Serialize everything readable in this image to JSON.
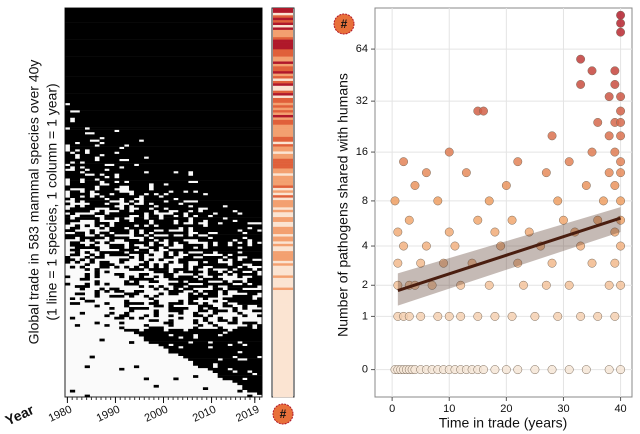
{
  "chart_data": [
    {
      "type": "heatmap",
      "y_label": "Global trade in 583 mammal species over 40y",
      "y_sublabel": "(1 line = 1 species, 1 column = 1 year)",
      "x_label": "Year",
      "xlim": [
        1979.5,
        2020.5
      ],
      "xticks": [
        1980,
        1990,
        2000,
        2010,
        2019
      ],
      "badge": "#"
    },
    {
      "type": "scatter",
      "x_label": "Time in trade (years)",
      "y_label": "Number of pathogens shared with humans",
      "y_scale": "log1p",
      "xlim": [
        -3,
        42
      ],
      "ylim": [
        -0.3,
        110
      ],
      "xticks": [
        0,
        10,
        20,
        30,
        40
      ],
      "yticks": [
        0,
        1,
        2,
        4,
        8,
        16,
        32,
        64
      ],
      "grid": true,
      "color_scale": [
        "#f7f2ea",
        "#f0a063",
        "#b0182a"
      ],
      "badge": "#",
      "x": [
        0.5,
        1,
        1.5,
        2,
        2.5,
        3,
        3.5,
        4,
        5,
        6,
        7,
        8,
        9,
        10,
        11,
        12,
        13,
        14,
        15,
        16,
        18,
        20,
        22,
        25,
        28,
        31,
        34,
        38,
        40,
        1,
        2,
        3,
        5,
        8,
        10,
        12,
        15,
        18,
        21,
        25,
        29,
        33,
        36,
        39,
        1,
        3,
        4,
        7,
        12,
        17,
        23,
        27,
        31,
        38,
        40,
        1,
        5,
        9,
        14,
        22,
        28,
        35,
        39,
        2,
        6,
        11,
        19,
        26,
        33,
        40,
        1,
        10,
        18,
        24,
        32,
        39,
        3,
        15,
        21,
        30,
        36,
        40,
        0.5,
        8,
        17,
        29,
        37,
        40,
        4,
        20,
        34,
        39,
        6,
        13,
        27,
        38,
        40,
        2,
        22,
        31,
        40,
        10,
        35,
        39,
        28,
        38,
        40,
        36,
        39,
        40,
        15,
        16,
        40,
        38,
        40,
        33,
        39,
        35,
        39,
        33,
        40,
        40,
        40
      ],
      "y": [
        0,
        0,
        0,
        0,
        0,
        0,
        0,
        0,
        0,
        0,
        0,
        0,
        0,
        0,
        0,
        0,
        0,
        0,
        0,
        0,
        0,
        0,
        0,
        0,
        0,
        0,
        0,
        0,
        0,
        1,
        1,
        1,
        1,
        1,
        1,
        1,
        1,
        1,
        1,
        1,
        1,
        1,
        1,
        1,
        2,
        2,
        2,
        2,
        2,
        2,
        2,
        2,
        2,
        2,
        2,
        3,
        3,
        3,
        3,
        3,
        3,
        3,
        3,
        4,
        4,
        4,
        4,
        4,
        4,
        4,
        5,
        5,
        5,
        5,
        5,
        5,
        6,
        6,
        6,
        6,
        6,
        6,
        8,
        8,
        8,
        8,
        8,
        8,
        10,
        10,
        10,
        10,
        12,
        12,
        12,
        12,
        12,
        14,
        14,
        14,
        14,
        16,
        16,
        16,
        20,
        20,
        20,
        24,
        24,
        24,
        28,
        28,
        28,
        34,
        34,
        40,
        40,
        48,
        48,
        56,
        80,
        90,
        100
      ],
      "trend": {
        "x": [
          1,
          40
        ],
        "y": [
          1.8,
          6.2
        ],
        "lower": [
          1.3,
          5.0
        ],
        "upper": [
          2.5,
          7.3
        ]
      }
    }
  ]
}
